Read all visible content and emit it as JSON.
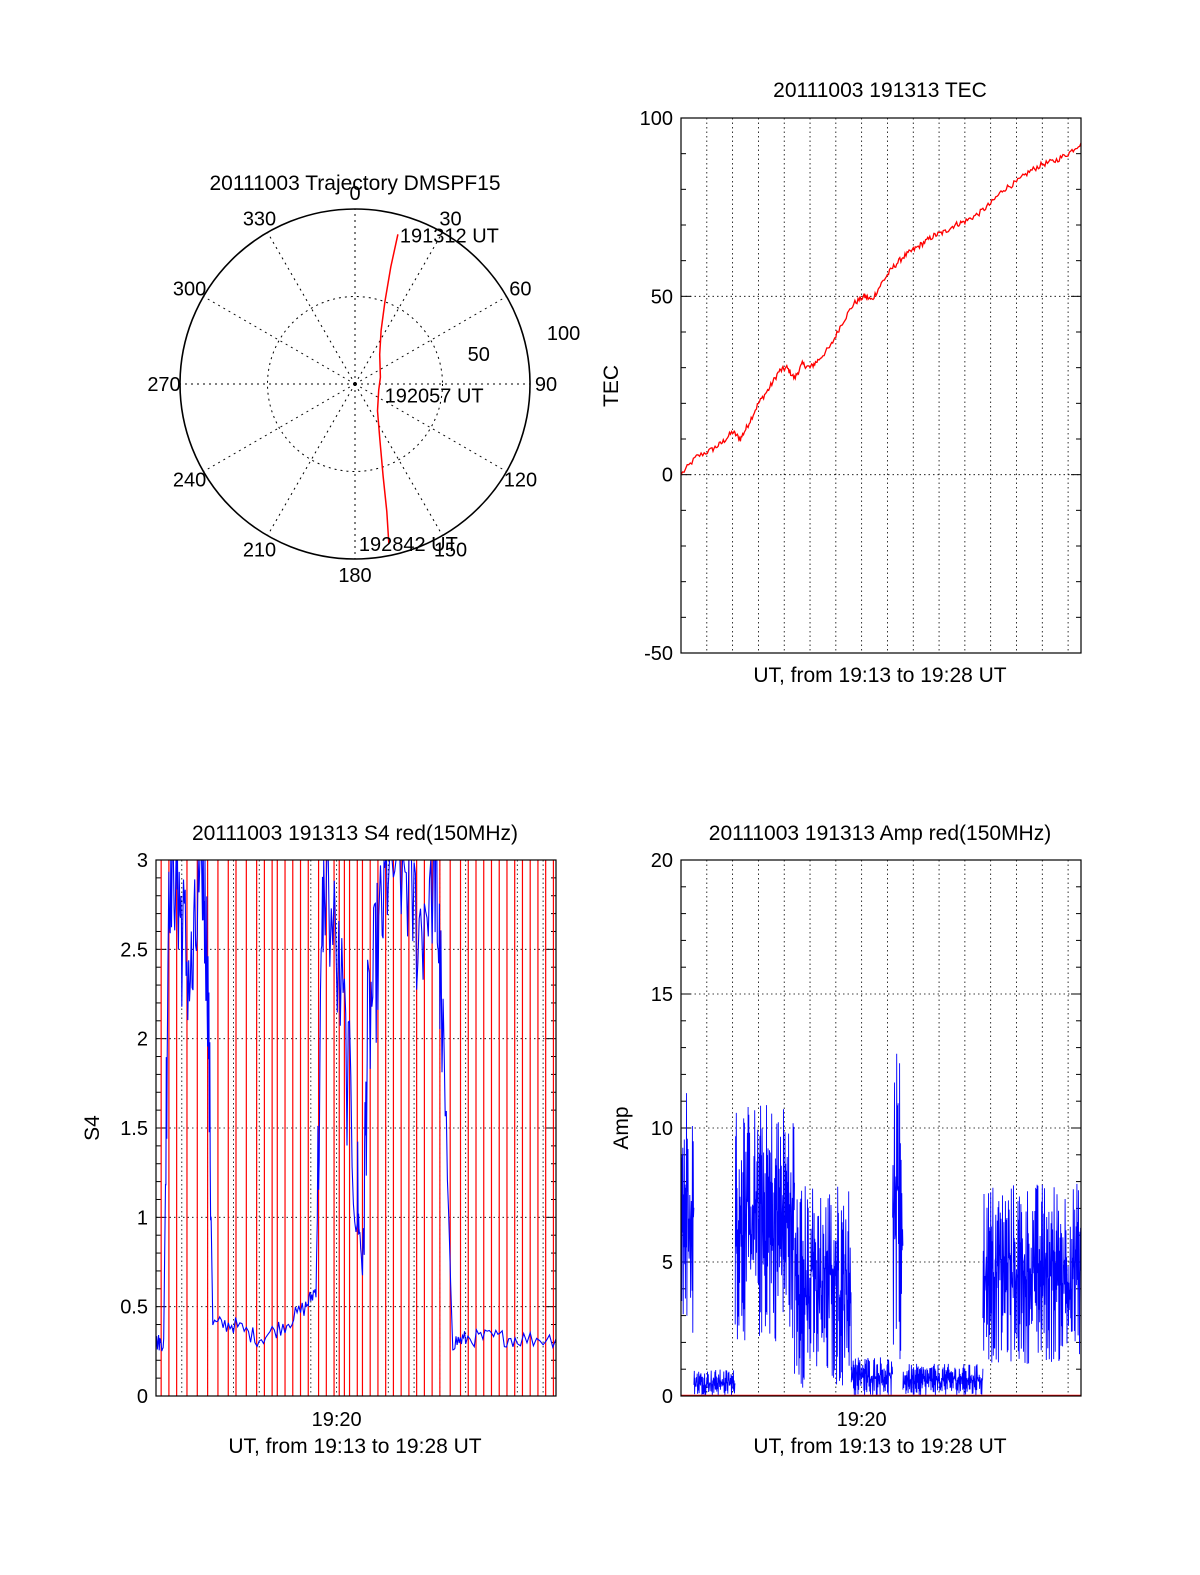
{
  "chart_data": [
    {
      "id": "trajectory",
      "type": "polar",
      "title": "20111003 Trajectory DMSPF15",
      "angular_ticks": [
        "0",
        "30",
        "60",
        "90",
        "120",
        "150",
        "180",
        "210",
        "240",
        "270",
        "300",
        "330"
      ],
      "radial_ticks": [
        "50",
        "100"
      ],
      "radial_max": 100,
      "grid": true,
      "series": [
        {
          "color": "#ff0000",
          "points": [
            {
              "az": 16,
              "r": 89
            },
            {
              "az": 17,
              "r": 70
            },
            {
              "az": 20,
              "r": 50
            },
            {
              "az": 26,
              "r": 34
            },
            {
              "az": 40,
              "r": 22
            },
            {
              "az": 75,
              "r": 15
            },
            {
              "az": 105,
              "r": 14
            },
            {
              "az": 140,
              "r": 20
            },
            {
              "az": 156,
              "r": 35
            },
            {
              "az": 163,
              "r": 55
            },
            {
              "az": 166,
              "r": 75
            },
            {
              "az": 168,
              "r": 93
            }
          ]
        }
      ],
      "annotations": [
        {
          "text": "191312 UT",
          "az": 16,
          "r": 89
        },
        {
          "text": "192057 UT",
          "az": 105,
          "r": 14
        },
        {
          "text": "192842 UT",
          "az": 168,
          "r": 93
        }
      ]
    },
    {
      "id": "tec",
      "type": "line",
      "title": "20111003 191313 TEC",
      "xlabel": "UT, from 19:13 to 19:28 UT",
      "ylabel": "TEC",
      "ylim": [
        -50,
        100
      ],
      "yticks": [
        "-50",
        "0",
        "50",
        "100"
      ],
      "xlim_minutes": [
        0,
        15.5
      ],
      "grid": true,
      "series": [
        {
          "color": "#ff0000",
          "x": [
            0,
            0.6,
            1.2,
            1.6,
            2.0,
            2.3,
            2.6,
            3.0,
            3.4,
            3.8,
            4.1,
            4.4,
            4.7,
            5.0,
            5.3,
            5.8,
            6.2,
            6.7,
            7.1,
            7.4,
            7.8,
            8.2,
            8.6,
            9.0,
            9.4,
            9.8,
            10.2,
            10.6,
            11.0,
            11.5,
            12.0,
            12.5,
            13.0,
            13.5,
            14.0,
            14.5,
            15.0,
            15.5
          ],
          "y": [
            0,
            5,
            7,
            9,
            12,
            10,
            14,
            20,
            24,
            29,
            30,
            27,
            31,
            30,
            32,
            36,
            42,
            48,
            50,
            49,
            54,
            58,
            61,
            63,
            65,
            67,
            68,
            70,
            71,
            73,
            76,
            80,
            82,
            85,
            87,
            88,
            90,
            93
          ]
        }
      ]
    },
    {
      "id": "s4",
      "type": "line",
      "title": "20111003 191313 S4 red(150MHz)",
      "xlabel": "UT, from 19:13 to 19:28 UT",
      "ylabel": "S4",
      "ylim": [
        0,
        3
      ],
      "yticks": [
        "0",
        "0.5",
        "1",
        "1.5",
        "2",
        "2.5",
        "3"
      ],
      "xlim_minutes": [
        0,
        15.5
      ],
      "xtick_labels": [
        {
          "minute": 7,
          "label": "19:20"
        }
      ],
      "grid": true,
      "series": [
        {
          "color": "#0000ff",
          "x": [
            0,
            0.3,
            0.5,
            0.8,
            1.0,
            1.4,
            1.8,
            2.0,
            2.2,
            3.0,
            4.0,
            5.0,
            5.8,
            6.2,
            6.5,
            7.2,
            7.8,
            8.0,
            8.2,
            8.6,
            9.0,
            9.6,
            10.2,
            10.8,
            11.0,
            11.5,
            12.0,
            13.0,
            14.0,
            15.5
          ],
          "y": [
            0.3,
            0.3,
            3.0,
            3.0,
            2.6,
            2.3,
            3.0,
            2.4,
            0.4,
            0.4,
            0.32,
            0.4,
            0.5,
            0.6,
            3.0,
            2.2,
            1.1,
            0.7,
            2.0,
            2.5,
            3.0,
            3.0,
            2.6,
            3.0,
            2.4,
            0.3,
            0.32,
            0.33,
            0.32,
            0.32
          ]
        },
        {
          "color": "#ff0000",
          "spike_x": [
            0.2,
            0.5,
            0.8,
            1.2,
            1.6,
            2.0,
            2.4,
            2.8,
            3.1,
            3.5,
            3.9,
            4.2,
            4.5,
            4.7,
            5.0,
            5.3,
            5.6,
            5.9,
            6.3,
            6.6,
            6.9,
            7.1,
            7.3,
            7.5,
            7.8,
            8.0,
            8.3,
            8.6,
            8.9,
            9.2,
            9.5,
            9.8,
            10.1,
            10.4,
            10.7,
            11.0,
            11.4,
            11.8,
            12.1,
            12.4,
            12.7,
            13.0,
            13.3,
            13.6,
            13.9,
            14.2,
            14.5,
            14.8,
            15.1,
            15.4
          ],
          "value": 3
        }
      ]
    },
    {
      "id": "amp",
      "type": "line",
      "title": "20111003 191313 Amp red(150MHz)",
      "xlabel": "UT, from 19:13 to 19:28 UT",
      "ylabel": "Amp",
      "ylim": [
        0,
        20
      ],
      "yticks": [
        "0",
        "5",
        "10",
        "15",
        "20"
      ],
      "xlim_minutes": [
        0,
        15.5
      ],
      "xtick_labels": [
        {
          "minute": 7,
          "label": "19:20"
        }
      ],
      "grid": true,
      "series": [
        {
          "color": "#0000ff",
          "segments": [
            {
              "x0": 0,
              "x1": 0.5,
              "low": 2,
              "high": 12
            },
            {
              "x0": 0.5,
              "x1": 2.1,
              "low": 0,
              "high": 1
            },
            {
              "x0": 2.1,
              "x1": 4.4,
              "low": 2,
              "high": 11
            },
            {
              "x0": 4.4,
              "x1": 6.6,
              "low": 0.3,
              "high": 8
            },
            {
              "x0": 6.6,
              "x1": 8.2,
              "low": 0,
              "high": 1.5
            },
            {
              "x0": 8.2,
              "x1": 8.6,
              "low": 0.5,
              "high": 12.8
            },
            {
              "x0": 8.6,
              "x1": 11.7,
              "low": 0,
              "high": 1.2
            },
            {
              "x0": 11.7,
              "x1": 15.5,
              "low": 1.2,
              "high": 8
            }
          ]
        },
        {
          "color": "#ff0000",
          "x": [
            0,
            15.5
          ],
          "y": [
            0.02,
            0.02
          ]
        }
      ]
    }
  ]
}
